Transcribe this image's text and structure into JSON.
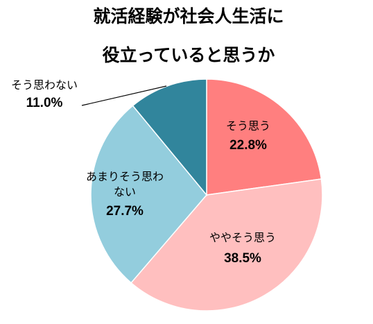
{
  "chart_data": {
    "type": "pie",
    "title_lines": [
      "就活経験が社会人生活に",
      "役立っていると思うか"
    ],
    "slices": [
      {
        "label": "そう思う",
        "label_lines": [
          "そう思う"
        ],
        "value": 22.8,
        "value_label": "22.8%",
        "color": "#ff7f7f"
      },
      {
        "label": "ややそう思う",
        "label_lines": [
          "ややそう思う"
        ],
        "value": 38.5,
        "value_label": "38.5%",
        "color": "#ffbfbf"
      },
      {
        "label": "あまりそう思わない",
        "label_lines": [
          "あまりそう思わ",
          "ない"
        ],
        "value": 27.7,
        "value_label": "27.7%",
        "color": "#93cddd"
      },
      {
        "label": "そう思わない",
        "label_lines": [
          "そう思わない"
        ],
        "value": 11.0,
        "value_label": "11.0%",
        "color": "#31859c"
      }
    ],
    "start_angle_deg": 0,
    "direction": "clockwise",
    "legend": "none"
  }
}
